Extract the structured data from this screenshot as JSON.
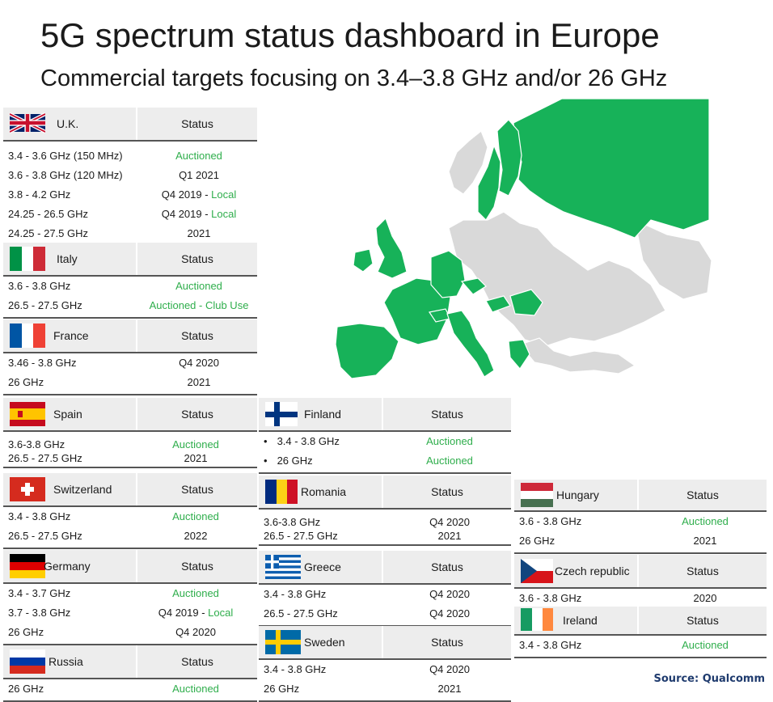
{
  "title": "5G spectrum status dashboard in Europe",
  "subtitle": "Commercial targets focusing on 3.4–3.8 GHz and/or 26 GHz",
  "source": "Source: Qualcomm",
  "colors": {
    "auctioned": "#2fae4c",
    "map_highlight": "#17b259",
    "map_other": "#d9d9d9",
    "header_bg": "#ededed"
  },
  "chart_data": {
    "type": "table",
    "status_header": "Status",
    "countries": [
      {
        "name": "U.K.",
        "flag": "uk-flag",
        "bands": [
          {
            "band": "3.4 - 3.6 GHz (150 MHz)",
            "status": "Auctioned"
          },
          {
            "band": "3.6 - 3.8 GHz (120 MHz)",
            "status": "Q1 2021"
          },
          {
            "band": "3.8 - 4.2 GHz",
            "status": "Q4 2019 - ",
            "status_extra": "Local"
          },
          {
            "band": "24.25 - 26.5 GHz",
            "status": "Q4 2019 - ",
            "status_extra": "Local"
          },
          {
            "band": "24.25 - 27.5 GHz",
            "status": "2021"
          }
        ]
      },
      {
        "name": "Italy",
        "flag": "italy-flag",
        "bands": [
          {
            "band": "3.6 - 3.8 GHz",
            "status": "Auctioned"
          },
          {
            "band": "26.5 - 27.5 GHz",
            "status": "Auctioned - Club Use"
          }
        ]
      },
      {
        "name": "France",
        "flag": "france-flag",
        "bands": [
          {
            "band": "3.46 - 3.8 GHz",
            "status": "Q4 2020"
          },
          {
            "band": "26 GHz",
            "status": "2021"
          }
        ]
      },
      {
        "name": "Spain",
        "flag": "spain-flag",
        "bands": [
          {
            "band": "3.6-3.8 GHz",
            "status": "Auctioned"
          },
          {
            "band": "26.5 - 27.5 GHz",
            "status": "2021"
          }
        ]
      },
      {
        "name": "Switzerland",
        "flag": "switzerland-flag",
        "bands": [
          {
            "band": "3.4 - 3.8 GHz",
            "status": "Auctioned"
          },
          {
            "band": "26.5 - 27.5 GHz",
            "status": "2022"
          }
        ]
      },
      {
        "name": "Germany",
        "flag": "germany-flag",
        "bands": [
          {
            "band": "3.4 - 3.7 GHz",
            "status": "Auctioned"
          },
          {
            "band": "3.7 - 3.8 GHz",
            "status": "Q4 2019 - ",
            "status_extra": "Local"
          },
          {
            "band": "26 GHz",
            "status": "Q4 2020"
          }
        ]
      },
      {
        "name": "Russia",
        "flag": "russia-flag",
        "bands": [
          {
            "band": "26 GHz",
            "status": "Auctioned"
          }
        ]
      },
      {
        "name": "Finland",
        "flag": "finland-flag",
        "bullet": "•",
        "bands": [
          {
            "band": "3.4 - 3.8 GHz",
            "status": "Auctioned"
          },
          {
            "band": "26 GHz",
            "status": "Auctioned"
          }
        ]
      },
      {
        "name": "Romania",
        "flag": "romania-flag",
        "bands": [
          {
            "band": "3.6-3.8 GHz",
            "status": "Q4 2020"
          },
          {
            "band": "26.5 - 27.5 GHz",
            "status": "2021"
          }
        ]
      },
      {
        "name": "Greece",
        "flag": "greece-flag",
        "bands": [
          {
            "band": "3.4 - 3.8 GHz",
            "status": "Q4 2020"
          },
          {
            "band": "26.5 - 27.5 GHz",
            "status": "Q4 2020"
          }
        ]
      },
      {
        "name": "Sweden",
        "flag": "sweden-flag",
        "bands": [
          {
            "band": "3.4 - 3.8 GHz",
            "status": "Q4 2020"
          },
          {
            "band": "26 GHz",
            "status": "2021"
          }
        ]
      },
      {
        "name": "Hungary",
        "flag": "hungary-flag",
        "bands": [
          {
            "band": "3.6 - 3.8 GHz",
            "status": "Auctioned"
          },
          {
            "band": "26 GHz",
            "status": "2021"
          }
        ]
      },
      {
        "name": "Czech republic",
        "flag": "czech-flag",
        "bands": [
          {
            "band": "3.6 - 3.8 GHz",
            "status": "2020"
          }
        ]
      },
      {
        "name": "Ireland",
        "flag": "ireland-flag",
        "bands": [
          {
            "band": "3.4 - 3.8 GHz",
            "status": "Auctioned"
          }
        ]
      }
    ]
  }
}
